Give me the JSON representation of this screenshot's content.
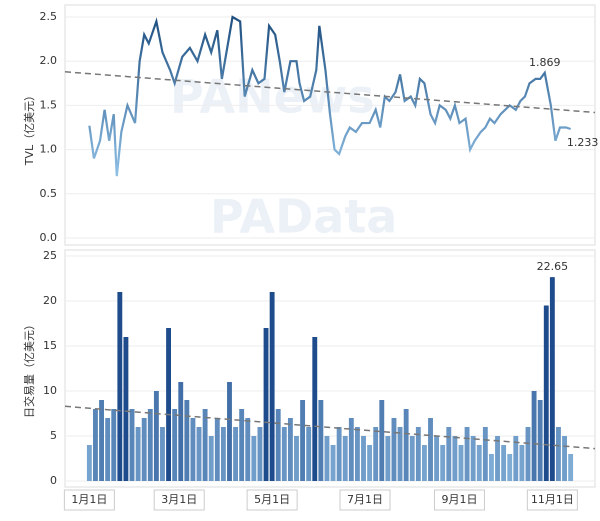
{
  "watermarks": [
    "PANews",
    "PAData"
  ],
  "chart_data": [
    {
      "type": "line",
      "ylabel": "TVL（亿美元）",
      "color": "#4a7fa8",
      "grid": true,
      "xlim": [
        -16,
        332
      ],
      "ylim": [
        0,
        2.5
      ],
      "yticks": [
        {
          "value": 0,
          "label": "0.0"
        },
        {
          "value": 0.5,
          "label": "0.5"
        },
        {
          "value": 1,
          "label": "1.0"
        },
        {
          "value": 1.5,
          "label": "1.5"
        },
        {
          "value": 2,
          "label": "2.0"
        },
        {
          "value": 2.5,
          "label": "2.5"
        }
      ],
      "x": [
        0,
        3,
        7,
        10,
        13,
        16,
        18,
        21,
        25,
        30,
        33,
        36,
        39,
        44,
        48,
        53,
        56,
        61,
        66,
        71,
        76,
        80,
        84,
        87,
        91,
        94,
        99,
        102,
        107,
        111,
        115,
        118,
        122,
        125,
        128,
        132,
        136,
        138,
        141,
        145,
        149,
        151,
        155,
        158,
        161,
        164,
        168,
        171,
        175,
        179,
        184,
        188,
        191,
        194,
        197,
        201,
        204,
        207,
        211,
        214,
        217,
        220,
        224,
        227,
        230,
        234,
        237,
        240,
        243,
        247,
        250,
        253,
        257,
        260,
        263,
        266,
        270,
        273,
        276,
        280,
        283,
        286,
        289,
        293,
        296,
        299,
        303,
        306,
        309,
        313,
        316
      ],
      "values": [
        1.27,
        0.9,
        1.1,
        1.45,
        1.1,
        1.4,
        0.7,
        1.2,
        1.5,
        1.3,
        2.0,
        2.3,
        2.2,
        2.45,
        2.1,
        1.9,
        1.75,
        2.05,
        2.15,
        2.0,
        2.3,
        2.1,
        2.35,
        1.8,
        2.2,
        2.5,
        2.45,
        1.6,
        1.9,
        1.75,
        1.8,
        2.4,
        2.3,
        2.0,
        1.65,
        2.0,
        2.0,
        1.75,
        1.55,
        1.6,
        1.9,
        2.4,
        1.9,
        1.4,
        1.0,
        0.95,
        1.15,
        1.25,
        1.2,
        1.3,
        1.3,
        1.45,
        1.25,
        1.6,
        1.55,
        1.65,
        1.85,
        1.55,
        1.6,
        1.5,
        1.8,
        1.75,
        1.4,
        1.3,
        1.5,
        1.45,
        1.35,
        1.5,
        1.3,
        1.35,
        1.0,
        1.1,
        1.2,
        1.25,
        1.35,
        1.3,
        1.4,
        1.45,
        1.5,
        1.45,
        1.55,
        1.6,
        1.75,
        1.8,
        1.8,
        1.869,
        1.5,
        1.1,
        1.25,
        1.25,
        1.233
      ],
      "trendline": [
        1.88,
        1.42
      ],
      "annotations": [
        {
          "text": "1.869",
          "x": 299,
          "y": 1.869
        },
        {
          "text": "1.233",
          "x": 316,
          "y": 1.233
        }
      ]
    },
    {
      "type": "bar",
      "ylabel": "日交易量（亿美元）",
      "color": "#6fa3cf",
      "grid": true,
      "xlim": [
        -16,
        332
      ],
      "ylim": [
        0,
        25
      ],
      "yticks": [
        0,
        5,
        10,
        15,
        20,
        25
      ],
      "xticks": [
        {
          "value": 0,
          "label": "1月1日"
        },
        {
          "value": 59,
          "label": "3月1日"
        },
        {
          "value": 120,
          "label": "5月1日"
        },
        {
          "value": 181,
          "label": "7月1日"
        },
        {
          "value": 243,
          "label": "9月1日"
        },
        {
          "value": 304,
          "label": "11月1日"
        }
      ],
      "x": [
        0,
        4,
        8,
        12,
        16,
        20,
        24,
        28,
        32,
        36,
        40,
        44,
        48,
        52,
        56,
        60,
        64,
        68,
        72,
        76,
        80,
        84,
        88,
        92,
        96,
        100,
        104,
        108,
        112,
        116,
        120,
        124,
        128,
        132,
        136,
        140,
        144,
        148,
        152,
        156,
        160,
        164,
        168,
        172,
        176,
        180,
        184,
        188,
        192,
        196,
        200,
        204,
        208,
        212,
        216,
        220,
        224,
        228,
        232,
        236,
        240,
        244,
        248,
        252,
        256,
        260,
        264,
        268,
        272,
        276,
        280,
        284,
        288,
        292,
        296,
        300,
        304,
        308,
        312,
        316
      ],
      "values": [
        4,
        8,
        9,
        7,
        8,
        21,
        16,
        8,
        6,
        7,
        8,
        10,
        6,
        17,
        8,
        11,
        9,
        7,
        6,
        8,
        5,
        7,
        6,
        11,
        6,
        8,
        7,
        5,
        6,
        17,
        21,
        8,
        6,
        7,
        5,
        9,
        6,
        16,
        9,
        5,
        4,
        6,
        5,
        7,
        6,
        5,
        4,
        6,
        9,
        5,
        7,
        6,
        8,
        5,
        6,
        4,
        7,
        5,
        4,
        6,
        5,
        4,
        6,
        5,
        4,
        6,
        3,
        5,
        4,
        3,
        5,
        4,
        6,
        10,
        9,
        19.5,
        22.65,
        6,
        5,
        3
      ],
      "trendline": [
        8.3,
        3.6
      ],
      "annotations": [
        {
          "text": "22.65",
          "x": 304,
          "y": 22.65
        }
      ]
    }
  ]
}
